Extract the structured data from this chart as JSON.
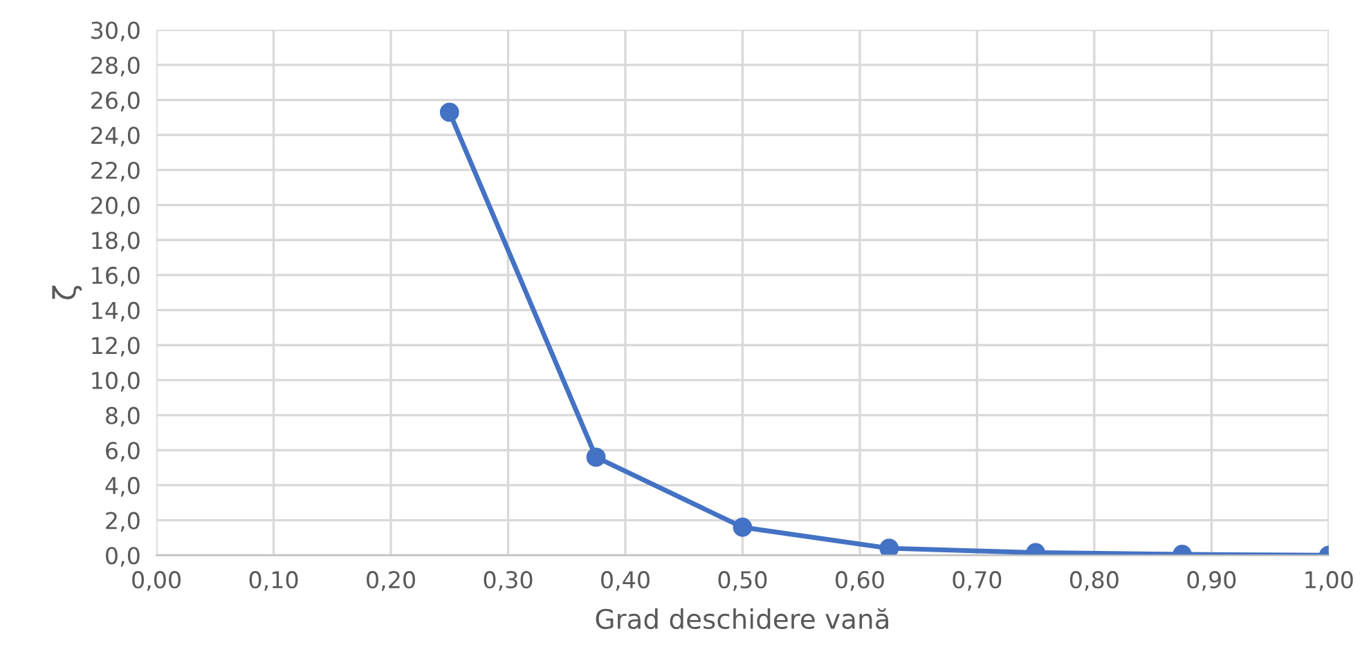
{
  "chart_data": {
    "type": "line",
    "xlabel": "Grad deschidere vană",
    "ylabel": "ζ",
    "x": [
      0.25,
      0.375,
      0.5,
      0.625,
      0.75,
      0.875,
      1.0
    ],
    "series": [
      {
        "color": "#4472c4",
        "values": [
          25.3,
          5.6,
          1.6,
          0.4,
          0.15,
          0.05,
          0.0
        ]
      }
    ],
    "marker": "circle",
    "line_style": "solid",
    "grid": true,
    "legend": false,
    "xlim": [
      0,
      1
    ],
    "ylim": [
      0,
      30
    ],
    "xticks": [
      {
        "value": 0,
        "label": "0,00"
      },
      {
        "value": 0.1,
        "label": "0,10"
      },
      {
        "value": 0.2,
        "label": "0,20"
      },
      {
        "value": 0.3,
        "label": "0,30"
      },
      {
        "value": 0.4,
        "label": "0,40"
      },
      {
        "value": 0.5,
        "label": "0,50"
      },
      {
        "value": 0.6,
        "label": "0,60"
      },
      {
        "value": 0.7,
        "label": "0,70"
      },
      {
        "value": 0.8,
        "label": "0,80"
      },
      {
        "value": 0.9,
        "label": "0,90"
      },
      {
        "value": 1,
        "label": "1,00"
      }
    ],
    "yticks": [
      {
        "value": 0,
        "label": "0,0"
      },
      {
        "value": 2,
        "label": "2,0"
      },
      {
        "value": 4,
        "label": "4,0"
      },
      {
        "value": 6,
        "label": "6,0"
      },
      {
        "value": 8,
        "label": "8,0"
      },
      {
        "value": 10,
        "label": "10,0"
      },
      {
        "value": 12,
        "label": "12,0"
      },
      {
        "value": 14,
        "label": "14,0"
      },
      {
        "value": 16,
        "label": "16,0"
      },
      {
        "value": 18,
        "label": "18,0"
      },
      {
        "value": 20,
        "label": "20,0"
      },
      {
        "value": 22,
        "label": "22,0"
      },
      {
        "value": 24,
        "label": "24,0"
      },
      {
        "value": 26,
        "label": "26,0"
      },
      {
        "value": 28,
        "label": "28,0"
      },
      {
        "value": 30,
        "label": "30,0"
      }
    ]
  }
}
